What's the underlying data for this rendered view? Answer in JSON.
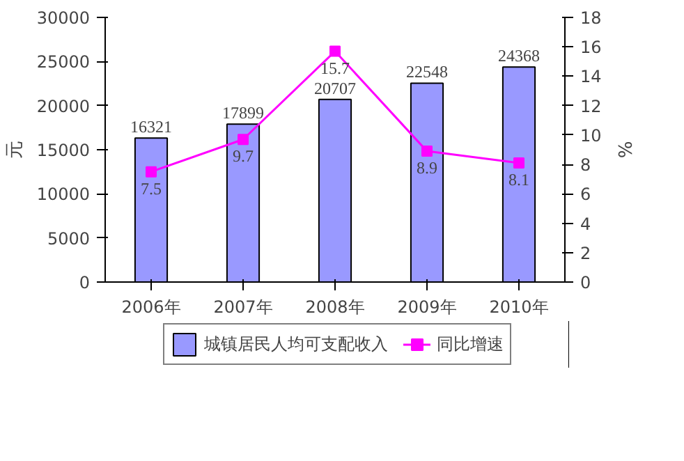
{
  "chart_data": {
    "type": "bar",
    "categories": [
      "2006年",
      "2007年",
      "2008年",
      "2009年",
      "2010年"
    ],
    "ylabel": "元",
    "y2label": "%",
    "ylim": [
      0,
      30000
    ],
    "yticks": [
      0,
      5000,
      10000,
      15000,
      20000,
      25000,
      30000
    ],
    "y2lim": [
      0,
      18
    ],
    "y2ticks": [
      0,
      2,
      4,
      6,
      8,
      10,
      12,
      14,
      16,
      18
    ],
    "series": [
      {
        "name": "城镇居民人均可支配收入",
        "color": "#9999ff",
        "values": [
          16321,
          17899,
          20707,
          22548,
          24368
        ]
      },
      {
        "name": "同比增速",
        "type": "line",
        "axis": "y2",
        "color": "#ff00ff",
        "marker": "square",
        "values": [
          7.5,
          9.7,
          15.7,
          8.9,
          8.1
        ]
      }
    ],
    "data_labels": true,
    "grid": false,
    "legend": "bottom"
  }
}
